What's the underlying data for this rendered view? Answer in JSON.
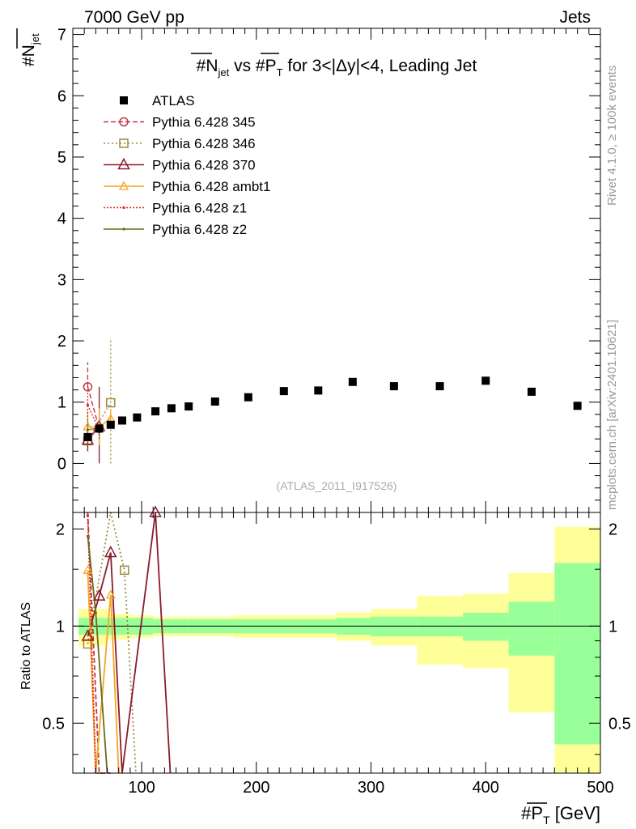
{
  "header": {
    "energy": "7000 GeV pp",
    "category": "Jets",
    "rivet_label": "Rivet 4.1.0, ≥ 100k events",
    "mcplots_label": "mcplots.cern.ch [arXiv:2401.10621]"
  },
  "chart_data": {
    "type": "scatter",
    "title": "#N_jet vs #P_T for 3<|Δy|<4, Leading Jet",
    "title_parts": {
      "a": "#N",
      "a_sub": "jet",
      "b": " vs #P",
      "b_sub": "T",
      "c": " for 3<|Δy|<4, Leading Jet"
    },
    "ylabel": "#N_jet",
    "ylabel_parts": {
      "main": "#N",
      "sub": "jet"
    },
    "xlabel": "#P_T [GeV]",
    "xlabel_parts": {
      "main": "#P",
      "sub": "T",
      "unit": " [GeV]"
    },
    "xlim": [
      40,
      500
    ],
    "ylim": [
      -0.8,
      7.1
    ],
    "x_ticks": [
      100,
      200,
      300,
      400,
      500
    ],
    "y_ticks": [
      0,
      1,
      2,
      3,
      4,
      5,
      6,
      7
    ],
    "ratio_ylabel": "Ratio to ATLAS",
    "ratio_ylim": [
      0.35,
      2.25
    ],
    "ratio_ticks": [
      0.5,
      1,
      2
    ],
    "watermark": "(ATLAS_2011_I917526)",
    "colors": {
      "atlas": "#000000",
      "p345": "#c0394b",
      "p346": "#a08a3c",
      "p370": "#8b1a2b",
      "ambt1": "#f5a623",
      "z1": "#d42a1c",
      "z2": "#6b6b1c",
      "band_inner": "#99ff99",
      "band_outer": "#ffff99"
    },
    "atlas": {
      "name": "ATLAS",
      "x": [
        53,
        63,
        73,
        83,
        96,
        112,
        126,
        141,
        164,
        193,
        224,
        254,
        284,
        320,
        360,
        400,
        440,
        480
      ],
      "y": [
        0.43,
        0.57,
        0.63,
        0.7,
        0.75,
        0.85,
        0.9,
        0.93,
        1.01,
        1.08,
        1.18,
        1.19,
        1.33,
        1.26,
        1.26,
        1.35,
        1.17,
        0.94
      ]
    },
    "ratio_band": {
      "edges": [
        45,
        60,
        70,
        90,
        110,
        140,
        180,
        230,
        270,
        300,
        340,
        380,
        420,
        460,
        500
      ],
      "inner": [
        0.06,
        0.06,
        0.06,
        0.06,
        0.05,
        0.05,
        0.05,
        0.05,
        0.06,
        0.07,
        0.07,
        0.1,
        0.19,
        0.57
      ],
      "outer": [
        0.13,
        0.13,
        0.09,
        0.08,
        0.07,
        0.07,
        0.08,
        0.08,
        0.1,
        0.13,
        0.24,
        0.26,
        0.46,
        1.03
      ]
    },
    "series": [
      {
        "name": "Pythia 6.428 345",
        "key": "p345",
        "marker": "circle",
        "dash": "6,3",
        "x": [
          53,
          63
        ],
        "y": [
          1.25,
          0.57
        ],
        "err": [
          [
            1.25,
            1.65
          ],
          [
            0.45,
            0.7
          ]
        ],
        "ratio_x": [
          53,
          63,
          73
        ],
        "ratio_y": [
          2.9,
          0.3,
          0.2
        ]
      },
      {
        "name": "Pythia 6.428 346",
        "key": "p346",
        "marker": "square",
        "dash": "2,3",
        "x": [
          53,
          73
        ],
        "y": [
          0.37,
          0.99
        ],
        "err": [
          [
            0.2,
            0.55
          ],
          [
            0.0,
            2.02
          ]
        ],
        "ratio_x": [
          53,
          73,
          85,
          95
        ],
        "ratio_y": [
          0.88,
          2.5,
          1.49,
          0.3
        ]
      },
      {
        "name": "Pythia 6.428 370",
        "key": "p370",
        "marker": "triangle",
        "dash": "",
        "x": [
          53,
          63
        ],
        "y": [
          0.38,
          0.6
        ],
        "err": [
          [
            0.2,
            0.55
          ],
          [
            0.0,
            1.25
          ]
        ],
        "ratio_x": [
          53,
          63,
          73,
          83,
          112,
          125
        ],
        "ratio_y": [
          0.93,
          1.24,
          1.69,
          0.3,
          2.25,
          0.3
        ]
      },
      {
        "name": "Pythia 6.428 ambt1",
        "key": "ambt1",
        "marker": "triangle_small",
        "dash": "",
        "x": [
          53,
          63,
          73
        ],
        "y": [
          0.6,
          0.6,
          0.73
        ],
        "err": [
          [
            0.35,
            0.85
          ],
          [
            0.3,
            0.9
          ],
          [
            0.6,
            0.85
          ]
        ],
        "ratio_x": [
          53,
          60,
          73,
          80
        ],
        "ratio_y": [
          1.49,
          0.3,
          1.25,
          0.3
        ]
      },
      {
        "name": "Pythia 6.428 z1",
        "key": "z1",
        "marker": "dot",
        "dash": "2,2",
        "x": [
          53,
          63
        ],
        "y": [
          0.95,
          0.55
        ],
        "err": [
          [
            0.6,
            1.3
          ],
          [
            0.4,
            0.7
          ]
        ],
        "ratio_x": [
          53,
          60,
          66
        ],
        "ratio_y": [
          2.2,
          0.3,
          0.3
        ]
      },
      {
        "name": "Pythia 6.428 z2",
        "key": "z2",
        "marker": "dot",
        "dash": "",
        "x": [
          53,
          63
        ],
        "y": [
          0.55,
          0.58
        ],
        "err": [
          [
            0.4,
            0.7
          ],
          [
            0.45,
            0.7
          ]
        ],
        "ratio_x": [
          53,
          60,
          70
        ],
        "ratio_y": [
          1.9,
          1.1,
          0.3
        ]
      }
    ]
  }
}
